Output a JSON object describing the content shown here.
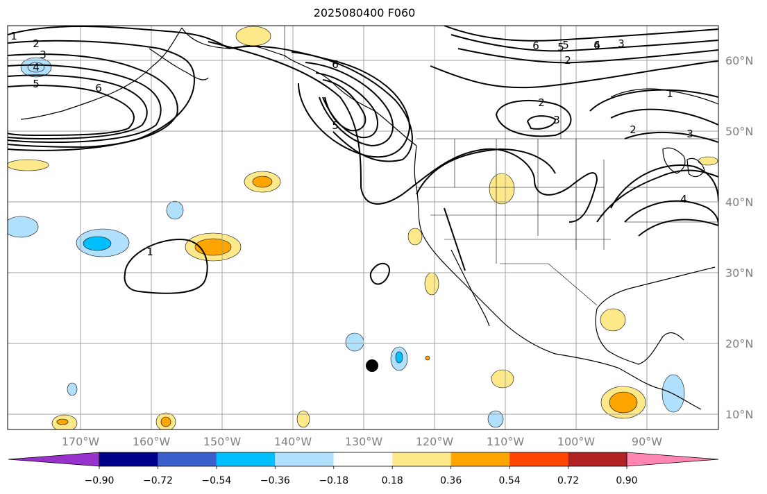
{
  "title": "2025080400 F060",
  "lon_labels": [
    "170°W",
    "160°W",
    "150°W",
    "140°W",
    "130°W",
    "120°W",
    "110°W",
    "100°W",
    "90°W"
  ],
  "lat_labels": [
    "60°N",
    "50°N",
    "40°N",
    "30°N",
    "20°N",
    "10°N"
  ],
  "colorbar": {
    "tick_labels": [
      "−0.90",
      "−0.72",
      "−0.54",
      "−0.36",
      "−0.18",
      "0.18",
      "0.36",
      "0.54",
      "0.72",
      "0.90"
    ],
    "colors": [
      "#9932cc",
      "#00008b",
      "#3a5fcd",
      "#00bfff",
      "#b0e0fb",
      "#ffffff",
      "#fde98a",
      "#ffa500",
      "#ff4500",
      "#b22222",
      "#ff86b0"
    ]
  },
  "contour_labels": [
    "1",
    "2",
    "3",
    "4",
    "5",
    "6",
    "6",
    "5",
    "6",
    "5",
    "4",
    "3",
    "2",
    "2",
    "3",
    "1",
    "2",
    "3",
    "4",
    "5",
    "6",
    "1"
  ],
  "colors": {
    "contour": "#000000",
    "grid": "#a0a0a0",
    "coast": "#000000",
    "pos_light": "#fde98a",
    "pos_mid": "#ffa500",
    "neg_light": "#b0e0fb",
    "neg_mid": "#00bfff",
    "marker": "#000000"
  }
}
